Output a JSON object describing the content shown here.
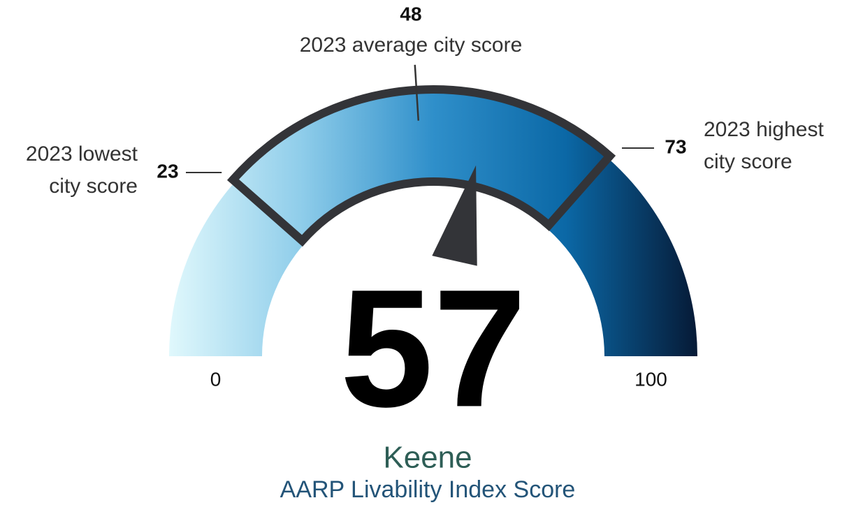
{
  "chart_data": {
    "type": "gauge",
    "value": 57,
    "ylim": [
      0,
      100
    ],
    "yticks": [
      0,
      100
    ],
    "markers": [
      {
        "value": 23,
        "label": [
          "2023 lowest",
          "city score"
        ]
      },
      {
        "value": 48,
        "label": [
          "2023 average city score"
        ]
      },
      {
        "value": 73,
        "label": [
          "2023 highest",
          "city score"
        ]
      }
    ],
    "name": "Keene",
    "subtitle": "AARP Livability Index Score",
    "colors": [
      "#e0f8fc",
      "#8fcdea",
      "#2f8fca",
      "#0b68a6",
      "#061a36"
    ],
    "highlight_color": "#333438",
    "needle_color": "#333438",
    "name_color": "#2e5e56",
    "subtitle_color": "#235478"
  }
}
